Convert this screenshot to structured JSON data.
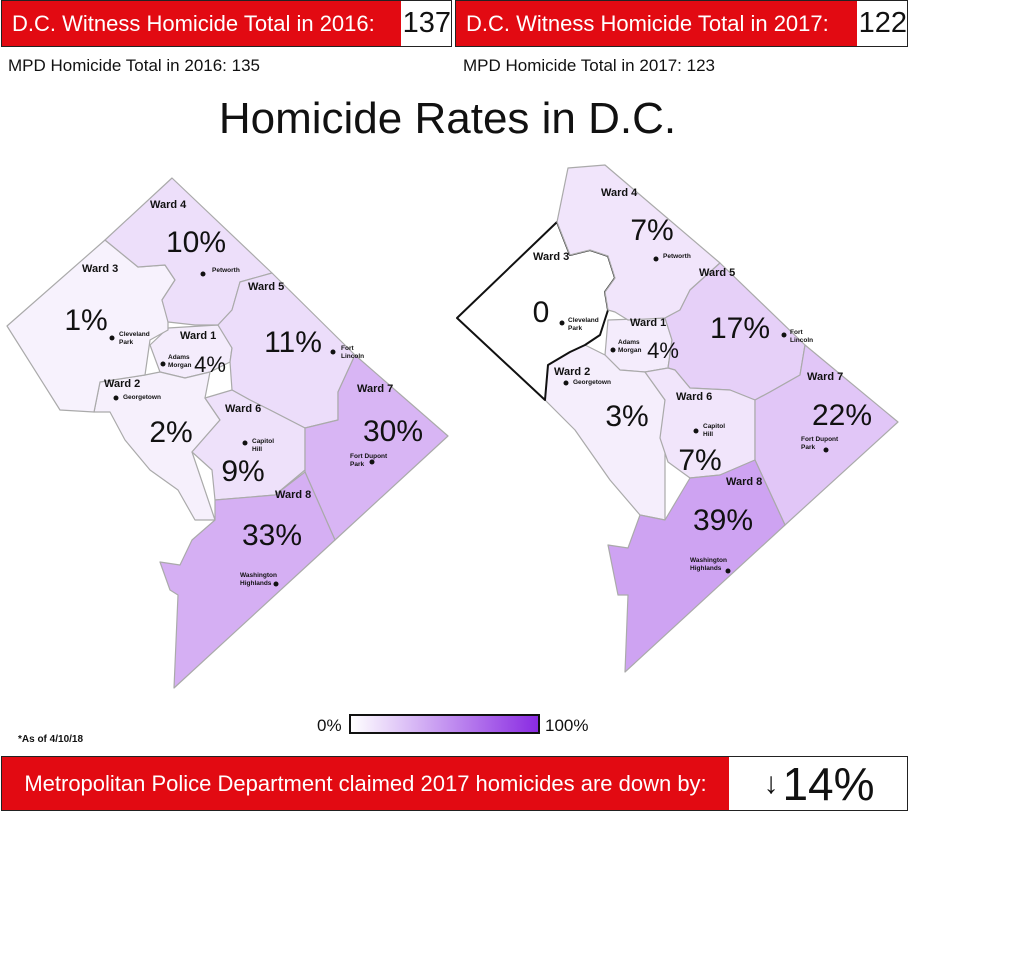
{
  "header": {
    "witness_2016_label": "D.C. Witness Homicide Total in 2016:",
    "witness_2016_value": "137",
    "witness_2017_label": "D.C. Witness Homicide Total in 2017:",
    "witness_2017_value": "122",
    "mpd_2016": "MPD Homicide Total in 2016: 135",
    "mpd_2017": "MPD Homicide Total in 2017: 123"
  },
  "title": "Homicide Rates in D.C.",
  "colors": {
    "banner_red": "#e20a12",
    "scale_low": "#ffffff",
    "scale_high": "#8a2be2",
    "border": "#aaaaaa"
  },
  "maps": [
    {
      "year": "2016",
      "wards": [
        {
          "ward": "Ward 1",
          "percent": 4,
          "label": "4%",
          "place": "Adams Morgan"
        },
        {
          "ward": "Ward 2",
          "percent": 2,
          "label": "2%",
          "place": "Georgetown"
        },
        {
          "ward": "Ward 3",
          "percent": 1,
          "label": "1%",
          "place": "Cleveland Park"
        },
        {
          "ward": "Ward 4",
          "percent": 10,
          "label": "10%",
          "place": "Petworth"
        },
        {
          "ward": "Ward 5",
          "percent": 11,
          "label": "11%",
          "place": "Fort Lincoln"
        },
        {
          "ward": "Ward 6",
          "percent": 9,
          "label": "9%",
          "place": "Capitol Hill"
        },
        {
          "ward": "Ward 7",
          "percent": 30,
          "label": "30%",
          "place": "Fort Dupont Park"
        },
        {
          "ward": "Ward 8",
          "percent": 33,
          "label": "33%",
          "place": "Washington Highlands"
        }
      ]
    },
    {
      "year": "2017",
      "wards": [
        {
          "ward": "Ward 1",
          "percent": 4,
          "label": "4%",
          "place": "Adams Morgan"
        },
        {
          "ward": "Ward 2",
          "percent": 3,
          "label": "3%",
          "place": "Georgetown"
        },
        {
          "ward": "Ward 3",
          "percent": 0,
          "label": "0",
          "place": "Cleveland Park"
        },
        {
          "ward": "Ward 4",
          "percent": 7,
          "label": "7%",
          "place": "Petworth"
        },
        {
          "ward": "Ward 5",
          "percent": 17,
          "label": "17%",
          "place": "Fort Lincoln"
        },
        {
          "ward": "Ward 6",
          "percent": 7,
          "label": "7%",
          "place": "Capitol Hill"
        },
        {
          "ward": "Ward 7",
          "percent": 22,
          "label": "22%",
          "place": "Fort Dupont Park"
        },
        {
          "ward": "Ward 8",
          "percent": 39,
          "label": "39%",
          "place": "Washington Highlands"
        }
      ]
    }
  ],
  "legend": {
    "min_label": "0%",
    "max_label": "100%"
  },
  "footnote": "*As of 4/10/18",
  "bottom": {
    "label": "Metropolitan Police Department claimed 2017 homicides are down by:",
    "arrow": "↓",
    "value": "14%"
  }
}
